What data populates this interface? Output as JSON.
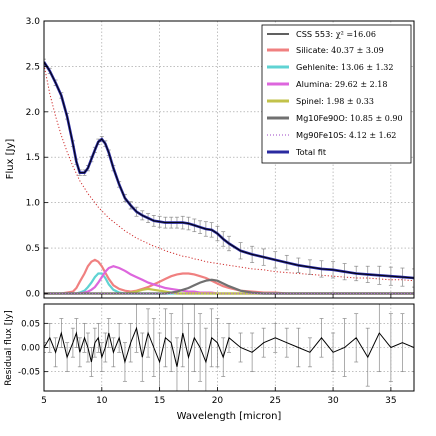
{
  "chart_data": [
    {
      "type": "line",
      "panel": "main",
      "title": "",
      "xlabel": "",
      "ylabel": "Flux [Jy]",
      "xlim": [
        5,
        37
      ],
      "ylim": [
        -0.05,
        3.0
      ],
      "grid": true,
      "legend_position": "top-right",
      "xticks": [
        "5",
        "10",
        "15",
        "20",
        "25",
        "30",
        "35"
      ],
      "yticks": [
        "0.0",
        "0.5",
        "1.0",
        "1.5",
        "2.0",
        "2.5",
        "3.0"
      ],
      "observed_label": "CSS 553",
      "chi2_text": "χ² =16.06",
      "total_fit_label": "Total fit",
      "x": [
        5.0,
        5.5,
        6.0,
        6.5,
        7.0,
        7.5,
        7.8,
        8.1,
        8.5,
        8.8,
        9.1,
        9.4,
        9.7,
        10.0,
        10.3,
        10.6,
        11.0,
        11.5,
        12.0,
        12.5,
        13.0,
        13.5,
        14.0,
        14.5,
        15.0,
        15.5,
        16.0,
        16.5,
        17.0,
        17.5,
        18.0,
        18.5,
        19.0,
        19.5,
        20.0,
        20.5,
        21.0,
        22.0,
        23.0,
        24.0,
        25.0,
        26.0,
        27.0,
        28.0,
        29.0,
        30.0,
        31.0,
        32.0,
        33.0,
        34.0,
        35.0,
        36.0,
        37.0
      ],
      "observed": [
        2.55,
        2.45,
        2.32,
        2.18,
        1.95,
        1.65,
        1.45,
        1.33,
        1.33,
        1.38,
        1.48,
        1.58,
        1.67,
        1.7,
        1.65,
        1.55,
        1.38,
        1.2,
        1.05,
        0.97,
        0.9,
        0.86,
        0.83,
        0.8,
        0.79,
        0.78,
        0.78,
        0.78,
        0.78,
        0.77,
        0.75,
        0.73,
        0.71,
        0.7,
        0.66,
        0.6,
        0.55,
        0.47,
        0.43,
        0.4,
        0.37,
        0.34,
        0.31,
        0.29,
        0.27,
        0.26,
        0.24,
        0.22,
        0.21,
        0.2,
        0.19,
        0.18,
        0.17
      ],
      "errors": [
        0.03,
        0.03,
        0.03,
        0.03,
        0.03,
        0.03,
        0.03,
        0.03,
        0.03,
        0.03,
        0.03,
        0.03,
        0.03,
        0.03,
        0.03,
        0.03,
        0.03,
        0.03,
        0.04,
        0.04,
        0.05,
        0.05,
        0.05,
        0.06,
        0.06,
        0.06,
        0.06,
        0.06,
        0.07,
        0.07,
        0.07,
        0.07,
        0.08,
        0.08,
        0.08,
        0.08,
        0.08,
        0.09,
        0.09,
        0.09,
        0.09,
        0.08,
        0.08,
        0.08,
        0.09,
        0.09,
        0.09,
        0.08,
        0.09,
        0.1,
        0.1,
        0.1,
        0.1
      ],
      "continuum": [
        2.52,
        2.2,
        1.95,
        1.74,
        1.56,
        1.4,
        1.32,
        1.24,
        1.16,
        1.1,
        1.05,
        1.0,
        0.95,
        0.91,
        0.87,
        0.83,
        0.79,
        0.74,
        0.69,
        0.65,
        0.61,
        0.58,
        0.55,
        0.52,
        0.5,
        0.47,
        0.45,
        0.43,
        0.41,
        0.4,
        0.38,
        0.37,
        0.35,
        0.34,
        0.33,
        0.32,
        0.31,
        0.29,
        0.27,
        0.26,
        0.24,
        0.23,
        0.22,
        0.21,
        0.2,
        0.19,
        0.18,
        0.17,
        0.17,
        0.16,
        0.15,
        0.15,
        0.14
      ],
      "series": [
        {
          "name": "Silicate",
          "value": "40.37 ± 3.09",
          "color": "#f08080",
          "y": [
            0,
            0,
            0,
            0,
            0.01,
            0.02,
            0.06,
            0.13,
            0.22,
            0.3,
            0.35,
            0.37,
            0.35,
            0.3,
            0.23,
            0.16,
            0.09,
            0.05,
            0.03,
            0.02,
            0.03,
            0.05,
            0.07,
            0.1,
            0.13,
            0.16,
            0.19,
            0.21,
            0.22,
            0.22,
            0.21,
            0.19,
            0.17,
            0.14,
            0.11,
            0.08,
            0.06,
            0.03,
            0.02,
            0.01,
            0.01,
            0,
            0,
            0,
            0,
            0,
            0,
            0,
            0,
            0,
            0,
            0,
            0
          ]
        },
        {
          "name": "Gehlenite",
          "value": "13.06 ± 1.32",
          "color": "#5fd3d3",
          "y": [
            0,
            0,
            0,
            0,
            0,
            0,
            0,
            0.01,
            0.03,
            0.07,
            0.12,
            0.18,
            0.22,
            0.22,
            0.17,
            0.1,
            0.04,
            0.01,
            0.0,
            0,
            0,
            0,
            0,
            0,
            0,
            0,
            0,
            0,
            0,
            0,
            0,
            0,
            0,
            0,
            0,
            0,
            0,
            0,
            0,
            0,
            0,
            0,
            0,
            0,
            0,
            0,
            0,
            0,
            0,
            0,
            0,
            0,
            0
          ]
        },
        {
          "name": "Alumina",
          "value": "29.62 ± 2.18",
          "color": "#dd66dd",
          "y": [
            0,
            0,
            0,
            0,
            0,
            0,
            0,
            0,
            0.01,
            0.02,
            0.04,
            0.07,
            0.12,
            0.18,
            0.24,
            0.28,
            0.3,
            0.28,
            0.25,
            0.21,
            0.18,
            0.15,
            0.12,
            0.1,
            0.08,
            0.06,
            0.05,
            0.04,
            0.03,
            0.02,
            0.02,
            0.01,
            0.01,
            0.01,
            0,
            0,
            0,
            0,
            0,
            0,
            0,
            0,
            0,
            0,
            0,
            0,
            0,
            0,
            0,
            0,
            0,
            0,
            0
          ]
        },
        {
          "name": "Spinel",
          "value": "1.98 ± 0.33",
          "color": "#c2c24a",
          "y": [
            0,
            0,
            0,
            0,
            0,
            0,
            0,
            0,
            0,
            0,
            0,
            0,
            0,
            0,
            0,
            0,
            0,
            0,
            0,
            0.01,
            0.02,
            0.04,
            0.05,
            0.04,
            0.03,
            0.02,
            0.01,
            0,
            0,
            0,
            0,
            0,
            0,
            0,
            0,
            0,
            0,
            0,
            0,
            0,
            0,
            0,
            0,
            0,
            0,
            0,
            0,
            0,
            0,
            0,
            0,
            0,
            0
          ]
        },
        {
          "name": "Mg10Fe90O",
          "value": "10.85 ± 0.90",
          "color": "#707070",
          "y": [
            0,
            0,
            0,
            0,
            0,
            0,
            0,
            0,
            0,
            0,
            0,
            0,
            0,
            0,
            0,
            0,
            0,
            0,
            0,
            0,
            0,
            0,
            0,
            0,
            0,
            0,
            0.01,
            0.02,
            0.04,
            0.06,
            0.09,
            0.12,
            0.14,
            0.15,
            0.14,
            0.11,
            0.08,
            0.03,
            0.01,
            0,
            0,
            0,
            0,
            0,
            0,
            0,
            0,
            0,
            0,
            0,
            0,
            0,
            0
          ]
        },
        {
          "name": "Mg90Fe10S",
          "value": "4.12 ± 1.62",
          "color": "#b06ad0",
          "style": "dotted",
          "y": [
            0,
            0,
            0,
            0,
            0,
            0,
            0,
            0,
            0,
            0,
            0,
            0,
            0,
            0,
            0,
            0,
            0,
            0,
            0,
            0,
            0,
            0,
            0,
            0,
            0,
            0,
            0,
            0,
            0,
            0,
            0,
            0,
            0,
            0,
            0,
            0,
            0,
            0,
            0,
            0,
            0,
            0,
            0,
            0,
            0,
            0,
            0,
            0,
            0,
            0,
            0,
            0,
            0
          ]
        }
      ]
    },
    {
      "type": "line",
      "panel": "residual",
      "title": "",
      "xlabel": "Wavelength [micron]",
      "ylabel": "Residual flux [Jy]",
      "xlim": [
        5,
        37
      ],
      "ylim": [
        -0.09,
        0.09
      ],
      "grid": true,
      "xticks": [
        "5",
        "10",
        "15",
        "20",
        "25",
        "30",
        "35"
      ],
      "yticks": [
        "0.05",
        "0.00",
        "-0.05"
      ],
      "x": [
        5.0,
        5.5,
        6.0,
        6.5,
        7.0,
        7.5,
        7.8,
        8.1,
        8.5,
        8.8,
        9.1,
        9.4,
        9.7,
        10.0,
        10.3,
        10.6,
        11.0,
        11.5,
        12.0,
        12.5,
        13.0,
        13.5,
        14.0,
        14.5,
        15.0,
        15.5,
        16.0,
        16.5,
        17.0,
        17.5,
        18.0,
        18.5,
        19.0,
        19.5,
        20.0,
        20.5,
        21.0,
        22.0,
        23.0,
        24.0,
        25.0,
        26.0,
        27.0,
        28.0,
        29.0,
        30.0,
        31.0,
        32.0,
        33.0,
        34.0,
        35.0,
        36.0,
        37.0
      ],
      "residual": [
        0.0,
        0.02,
        -0.01,
        0.03,
        -0.02,
        0.01,
        0.03,
        -0.01,
        0.02,
        0.0,
        -0.03,
        0.01,
        0.02,
        -0.02,
        0.0,
        0.03,
        -0.01,
        0.02,
        -0.03,
        0.01,
        0.04,
        -0.02,
        0.03,
        0.0,
        -0.03,
        0.02,
        0.01,
        -0.04,
        0.03,
        -0.02,
        0.02,
        0.0,
        -0.03,
        0.02,
        0.01,
        -0.02,
        0.02,
        0.0,
        -0.01,
        0.01,
        0.02,
        0.01,
        0.0,
        -0.01,
        0.02,
        -0.01,
        0.0,
        0.02,
        -0.02,
        0.03,
        0.0,
        0.01,
        0.0
      ],
      "errors": [
        0.01,
        0.03,
        0.03,
        0.03,
        0.03,
        0.03,
        0.03,
        0.03,
        0.03,
        0.03,
        0.03,
        0.03,
        0.03,
        0.03,
        0.03,
        0.03,
        0.03,
        0.03,
        0.04,
        0.04,
        0.05,
        0.05,
        0.05,
        0.06,
        0.06,
        0.06,
        0.06,
        0.06,
        0.07,
        0.07,
        0.07,
        0.07,
        0.07,
        0.06,
        0.05,
        0.04,
        0.03,
        0.03,
        0.04,
        0.03,
        0.03,
        0.03,
        0.04,
        0.03,
        0.04,
        0.04,
        0.06,
        0.05,
        0.06,
        0.08,
        0.07,
        0.06,
        0.05
      ]
    }
  ]
}
